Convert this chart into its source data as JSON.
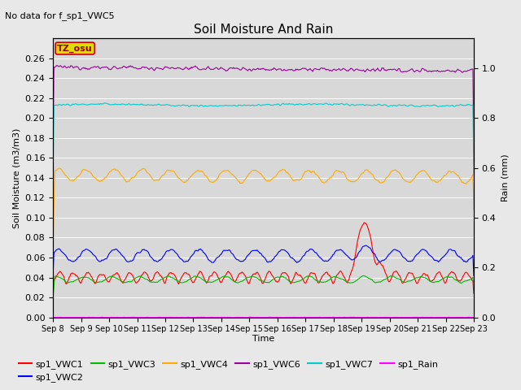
{
  "title": "Soil Moisture And Rain",
  "subtitle": "No data for f_sp1_VWC5",
  "xlabel": "Time",
  "ylabel_left": "Soil Moisture (m3/m3)",
  "ylabel_right": "Rain (mm)",
  "ylim_left": [
    0.0,
    0.28
  ],
  "ylim_right": [
    0.0,
    1.12
  ],
  "yticks_left": [
    0.0,
    0.02,
    0.04,
    0.06,
    0.08,
    0.1,
    0.12,
    0.14,
    0.16,
    0.18,
    0.2,
    0.22,
    0.24,
    0.26
  ],
  "yticks_right": [
    0.0,
    0.2,
    0.4,
    0.6,
    0.8,
    1.0
  ],
  "background_color": "#e8e8e8",
  "plot_bg_color": "#d8d8d8",
  "annotation_text": "TZ_osu",
  "series": {
    "sp1_VWC1": {
      "color": "#ff0000"
    },
    "sp1_VWC2": {
      "color": "#0000ff"
    },
    "sp1_VWC3": {
      "color": "#00bb00"
    },
    "sp1_VWC4": {
      "color": "#ffaa00"
    },
    "sp1_VWC6": {
      "color": "#990099"
    },
    "sp1_VWC7": {
      "color": "#00cccc"
    },
    "sp1_Rain": {
      "color": "#ff00ff"
    }
  },
  "xtick_labels": [
    "Sep 8",
    "Sep 9",
    "Sep 10",
    "Sep 11",
    "Sep 12",
    "Sep 13",
    "Sep 14",
    "Sep 15",
    "Sep 16",
    "Sep 17",
    "Sep 18",
    "Sep 19",
    "Sep 20",
    "Sep 21",
    "Sep 22",
    "Sep 23"
  ],
  "figsize": [
    6.4,
    4.8
  ],
  "dpi": 100
}
